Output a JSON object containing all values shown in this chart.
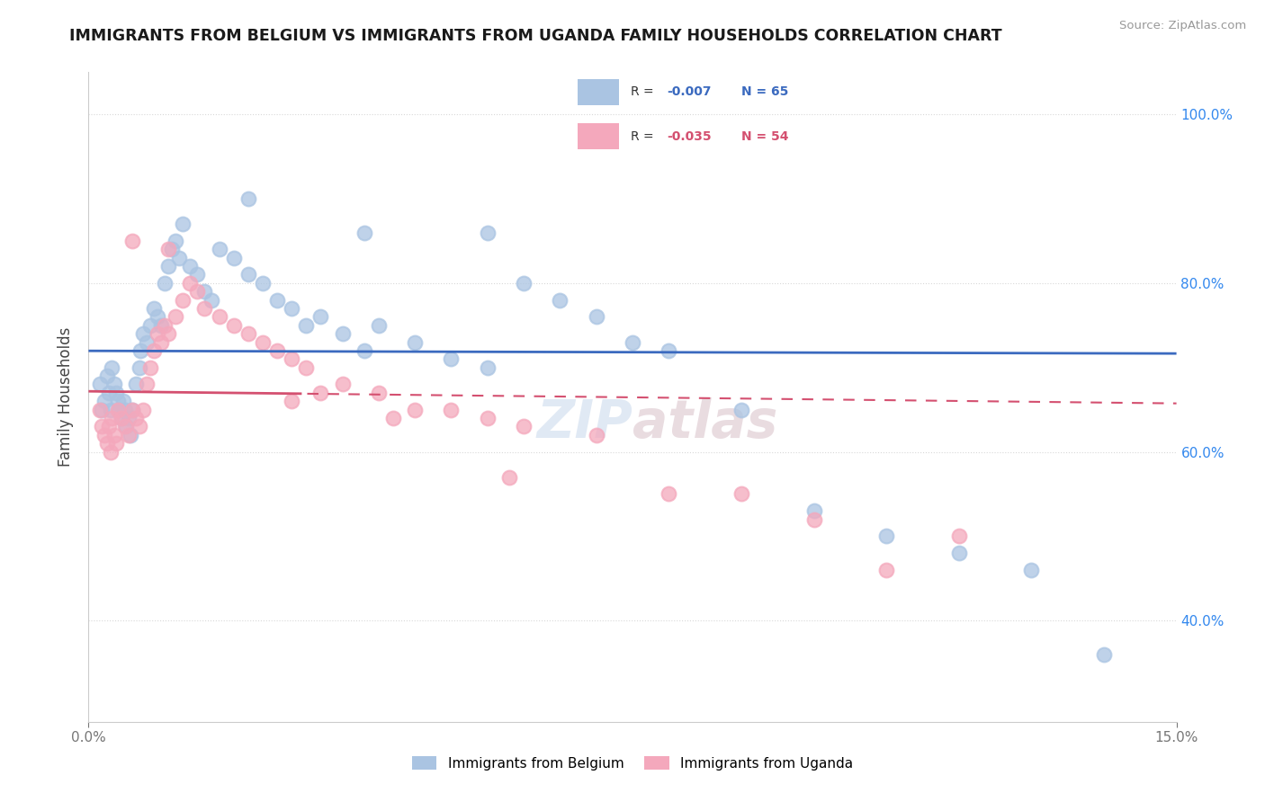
{
  "title": "IMMIGRANTS FROM BELGIUM VS IMMIGRANTS FROM UGANDA FAMILY HOUSEHOLDS CORRELATION CHART",
  "source": "Source: ZipAtlas.com",
  "ylabel": "Family Households",
  "xlim": [
    0,
    15
  ],
  "ylim": [
    28,
    105
  ],
  "yticks": [
    40,
    60,
    80,
    100
  ],
  "ytick_labels": [
    "40.0%",
    "60.0%",
    "80.0%",
    "100.0%"
  ],
  "belgium_R": -0.007,
  "belgium_N": 65,
  "uganda_R": -0.035,
  "uganda_N": 54,
  "belgium_color": "#aac4e2",
  "uganda_color": "#f4a8bc",
  "belgium_line_color": "#3b6abf",
  "uganda_line_color": "#d45070",
  "background_color": "#ffffff",
  "grid_color": "#d8d8d8",
  "title_color": "#1a1a1a",
  "belgium_x": [
    0.15,
    0.18,
    0.22,
    0.25,
    0.28,
    0.3,
    0.32,
    0.35,
    0.38,
    0.4,
    0.42,
    0.45,
    0.48,
    0.5,
    0.52,
    0.55,
    0.58,
    0.6,
    0.65,
    0.7,
    0.72,
    0.75,
    0.8,
    0.85,
    0.9,
    0.95,
    1.0,
    1.05,
    1.1,
    1.15,
    1.2,
    1.25,
    1.3,
    1.4,
    1.5,
    1.6,
    1.7,
    1.8,
    2.0,
    2.2,
    2.4,
    2.6,
    2.8,
    3.0,
    3.2,
    3.5,
    3.8,
    4.0,
    4.5,
    5.0,
    5.5,
    6.0,
    6.5,
    7.0,
    7.5,
    8.0,
    9.0,
    10.0,
    11.0,
    12.0,
    13.0,
    14.0,
    3.8,
    2.2,
    5.5
  ],
  "belgium_y": [
    68,
    65,
    66,
    69,
    67,
    65,
    70,
    68,
    67,
    66,
    65,
    64,
    66,
    65,
    63,
    64,
    62,
    65,
    68,
    70,
    72,
    74,
    73,
    75,
    77,
    76,
    75,
    80,
    82,
    84,
    85,
    83,
    87,
    82,
    81,
    79,
    78,
    84,
    83,
    81,
    80,
    78,
    77,
    75,
    76,
    74,
    72,
    75,
    73,
    71,
    70,
    80,
    78,
    76,
    73,
    72,
    65,
    53,
    50,
    48,
    46,
    36,
    86,
    90,
    86
  ],
  "uganda_x": [
    0.15,
    0.18,
    0.22,
    0.25,
    0.28,
    0.3,
    0.32,
    0.35,
    0.38,
    0.4,
    0.45,
    0.5,
    0.55,
    0.6,
    0.65,
    0.7,
    0.75,
    0.8,
    0.85,
    0.9,
    0.95,
    1.0,
    1.05,
    1.1,
    1.2,
    1.3,
    1.4,
    1.5,
    1.6,
    1.8,
    2.0,
    2.2,
    2.4,
    2.6,
    2.8,
    3.0,
    3.5,
    4.0,
    4.5,
    5.0,
    5.5,
    6.0,
    7.0,
    8.0,
    9.0,
    10.0,
    11.0,
    12.0,
    3.2,
    2.8,
    1.1,
    0.6,
    4.2,
    5.8
  ],
  "uganda_y": [
    65,
    63,
    62,
    61,
    63,
    60,
    64,
    62,
    61,
    65,
    64,
    63,
    62,
    65,
    64,
    63,
    65,
    68,
    70,
    72,
    74,
    73,
    75,
    74,
    76,
    78,
    80,
    79,
    77,
    76,
    75,
    74,
    73,
    72,
    71,
    70,
    68,
    67,
    65,
    65,
    64,
    63,
    62,
    55,
    55,
    52,
    46,
    50,
    67,
    66,
    84,
    85,
    64,
    57
  ]
}
